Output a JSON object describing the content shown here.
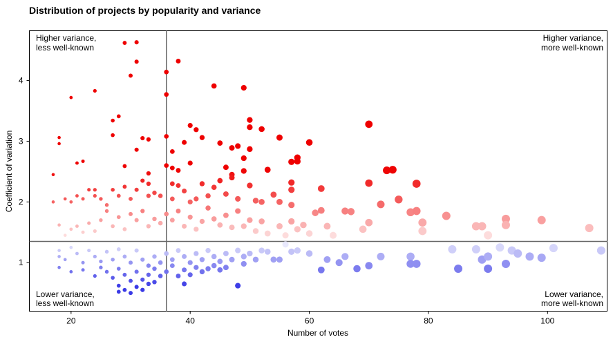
{
  "chart_data": {
    "type": "scatter",
    "title": "Distribution of projects by popularity and variance",
    "xlabel": "Number of votes",
    "ylabel": "Coefficient of variation",
    "xlim": [
      13,
      110
    ],
    "ylim": [
      0.2,
      4.82
    ],
    "xticks": [
      20,
      40,
      60,
      80,
      100
    ],
    "yticks": [
      1,
      2,
      3,
      4
    ],
    "reference_lines": {
      "x": 36,
      "y": 1.35
    },
    "grid": false,
    "corner_annotations": {
      "top_left": [
        "Higher variance,",
        "less well-known"
      ],
      "top_right": [
        "Higher variance,",
        "more well-known"
      ],
      "bottom_left": [
        "Lower variance,",
        "less well-known"
      ],
      "bottom_right": [
        "Lower variance,",
        "more well-known"
      ]
    },
    "color_scale": {
      "high": "#ee0000",
      "mid": "#ffffff",
      "low": "#3a3ae6",
      "center": 1.35
    },
    "points": [
      [
        17,
        2.45
      ],
      [
        18,
        3.06
      ],
      [
        18,
        2.96
      ],
      [
        20,
        3.72
      ],
      [
        21,
        2.64
      ],
      [
        22,
        2.67
      ],
      [
        24,
        3.83
      ],
      [
        27,
        3.1
      ],
      [
        27,
        3.34
      ],
      [
        28,
        3.41
      ],
      [
        29,
        4.62
      ],
      [
        29,
        2.59
      ],
      [
        30,
        4.08
      ],
      [
        31,
        4.31
      ],
      [
        31,
        4.63
      ],
      [
        31,
        2.86
      ],
      [
        32,
        3.05
      ],
      [
        33,
        3.03
      ],
      [
        33,
        2.47
      ],
      [
        36,
        4.14
      ],
      [
        36,
        3.77
      ],
      [
        36,
        3.08
      ],
      [
        36,
        2.6
      ],
      [
        37,
        2.83
      ],
      [
        37,
        2.56
      ],
      [
        38,
        4.32
      ],
      [
        38,
        2.52
      ],
      [
        39,
        2.98
      ],
      [
        40,
        3.26
      ],
      [
        40,
        2.64
      ],
      [
        41,
        3.19
      ],
      [
        42,
        3.06
      ],
      [
        44,
        3.91
      ],
      [
        45,
        2.97
      ],
      [
        46,
        2.57
      ],
      [
        47,
        2.89
      ],
      [
        47,
        2.45
      ],
      [
        48,
        2.92
      ],
      [
        49,
        3.88
      ],
      [
        49,
        2.72
      ],
      [
        49,
        2.51
      ],
      [
        50,
        3.35
      ],
      [
        50,
        3.23
      ],
      [
        50,
        2.87
      ],
      [
        52,
        3.2
      ],
      [
        53,
        2.53
      ],
      [
        55,
        3.06
      ],
      [
        57,
        2.66
      ],
      [
        58,
        2.73
      ],
      [
        58,
        2.67
      ],
      [
        60,
        2.98
      ],
      [
        70,
        3.28
      ],
      [
        73,
        2.52
      ],
      [
        74,
        2.53
      ],
      [
        17,
        2.0
      ],
      [
        19,
        2.05
      ],
      [
        20,
        2.0
      ],
      [
        21,
        2.1
      ],
      [
        22,
        2.05
      ],
      [
        23,
        2.2
      ],
      [
        24,
        2.2
      ],
      [
        24,
        2.1
      ],
      [
        25,
        2.05
      ],
      [
        26,
        1.95
      ],
      [
        27,
        2.2
      ],
      [
        28,
        2.1
      ],
      [
        29,
        2.25
      ],
      [
        30,
        2.05
      ],
      [
        31,
        2.2
      ],
      [
        32,
        2.35
      ],
      [
        33,
        2.1
      ],
      [
        33,
        2.3
      ],
      [
        34,
        2.15
      ],
      [
        35,
        2.1
      ],
      [
        37,
        2.3
      ],
      [
        37,
        2.05
      ],
      [
        38,
        2.27
      ],
      [
        39,
        2.18
      ],
      [
        40,
        2.0
      ],
      [
        41,
        2.05
      ],
      [
        42,
        2.3
      ],
      [
        43,
        2.1
      ],
      [
        44,
        2.24
      ],
      [
        45,
        2.35
      ],
      [
        46,
        2.13
      ],
      [
        47,
        2.4
      ],
      [
        48,
        2.05
      ],
      [
        50,
        2.27
      ],
      [
        51,
        2.02
      ],
      [
        52,
        2.0
      ],
      [
        54,
        2.12
      ],
      [
        55,
        2.0
      ],
      [
        57,
        2.32
      ],
      [
        57,
        2.2
      ],
      [
        62,
        2.22
      ],
      [
        70,
        2.31
      ],
      [
        75,
        2.04
      ],
      [
        78,
        2.3
      ],
      [
        72,
        1.96
      ],
      [
        57,
        1.95
      ],
      [
        61,
        1.82
      ],
      [
        62,
        1.86
      ],
      [
        18,
        1.62
      ],
      [
        19,
        1.45
      ],
      [
        20,
        1.55
      ],
      [
        21,
        1.6
      ],
      [
        22,
        1.5
      ],
      [
        23,
        1.65
      ],
      [
        24,
        1.52
      ],
      [
        25,
        1.7
      ],
      [
        26,
        1.85
      ],
      [
        27,
        1.6
      ],
      [
        28,
        1.75
      ],
      [
        29,
        1.55
      ],
      [
        30,
        1.8
      ],
      [
        31,
        1.7
      ],
      [
        32,
        1.85
      ],
      [
        33,
        1.6
      ],
      [
        34,
        1.72
      ],
      [
        35,
        1.65
      ],
      [
        36,
        1.8
      ],
      [
        37,
        1.7
      ],
      [
        38,
        1.85
      ],
      [
        39,
        1.6
      ],
      [
        40,
        1.75
      ],
      [
        41,
        1.55
      ],
      [
        42,
        1.68
      ],
      [
        43,
        1.9
      ],
      [
        44,
        1.72
      ],
      [
        45,
        1.62
      ],
      [
        46,
        1.78
      ],
      [
        47,
        1.58
      ],
      [
        48,
        1.85
      ],
      [
        49,
        1.6
      ],
      [
        50,
        1.7
      ],
      [
        51,
        1.52
      ],
      [
        52,
        1.68
      ],
      [
        53,
        1.48
      ],
      [
        55,
        1.6
      ],
      [
        56,
        1.45
      ],
      [
        57,
        1.68
      ],
      [
        58,
        1.55
      ],
      [
        59,
        1.62
      ],
      [
        60,
        1.48
      ],
      [
        63,
        1.6
      ],
      [
        64,
        1.45
      ],
      [
        66,
        1.85
      ],
      [
        67,
        1.84
      ],
      [
        69,
        1.55
      ],
      [
        70,
        1.66
      ],
      [
        77,
        1.83
      ],
      [
        78,
        1.85
      ],
      [
        79,
        1.66
      ],
      [
        79,
        1.52
      ],
      [
        83,
        1.77
      ],
      [
        88,
        1.6
      ],
      [
        89,
        1.6
      ],
      [
        90,
        1.45
      ],
      [
        93,
        1.72
      ],
      [
        93,
        1.62
      ],
      [
        99,
        1.7
      ],
      [
        107,
        1.57
      ],
      [
        18,
        1.2
      ],
      [
        18,
        1.1
      ],
      [
        18,
        0.92
      ],
      [
        19,
        1.05
      ],
      [
        20,
        1.25
      ],
      [
        20,
        0.85
      ],
      [
        21,
        1.15
      ],
      [
        22,
        1.0
      ],
      [
        22,
        0.88
      ],
      [
        23,
        1.2
      ],
      [
        24,
        1.1
      ],
      [
        24,
        0.78
      ],
      [
        25,
        1.02
      ],
      [
        25,
        0.92
      ],
      [
        26,
        1.18
      ],
      [
        26,
        0.85
      ],
      [
        27,
        1.05
      ],
      [
        27,
        0.75
      ],
      [
        28,
        1.22
      ],
      [
        28,
        0.9
      ],
      [
        28,
        0.62
      ],
      [
        28,
        0.52
      ],
      [
        29,
        1.1
      ],
      [
        29,
        0.8
      ],
      [
        29,
        0.55
      ],
      [
        30,
        1.0
      ],
      [
        30,
        0.7
      ],
      [
        30,
        0.5
      ],
      [
        31,
        1.2
      ],
      [
        31,
        0.85
      ],
      [
        31,
        0.6
      ],
      [
        32,
        1.05
      ],
      [
        32,
        0.72
      ],
      [
        32,
        0.55
      ],
      [
        33,
        0.95
      ],
      [
        33,
        0.8
      ],
      [
        33,
        0.65
      ],
      [
        34,
        1.1
      ],
      [
        34,
        0.9
      ],
      [
        34,
        0.68
      ],
      [
        35,
        1.0
      ],
      [
        35,
        0.78
      ],
      [
        36,
        1.15
      ],
      [
        36,
        0.85
      ],
      [
        37,
        1.05
      ],
      [
        37,
        0.95
      ],
      [
        38,
        1.2
      ],
      [
        38,
        0.78
      ],
      [
        39,
        1.1
      ],
      [
        39,
        0.88
      ],
      [
        39,
        0.65
      ],
      [
        40,
        1.0
      ],
      [
        40,
        0.8
      ],
      [
        41,
        1.15
      ],
      [
        41,
        0.92
      ],
      [
        42,
        1.05
      ],
      [
        42,
        0.85
      ],
      [
        43,
        1.2
      ],
      [
        43,
        0.9
      ],
      [
        44,
        1.1
      ],
      [
        44,
        0.95
      ],
      [
        45,
        1.02
      ],
      [
        45,
        0.88
      ],
      [
        46,
        1.15
      ],
      [
        46,
        0.92
      ],
      [
        47,
        1.05
      ],
      [
        48,
        0.62
      ],
      [
        48,
        1.2
      ],
      [
        49,
        1.1
      ],
      [
        49,
        0.98
      ],
      [
        50,
        1.15
      ],
      [
        51,
        1.05
      ],
      [
        52,
        1.2
      ],
      [
        53,
        1.18
      ],
      [
        54,
        1.05
      ],
      [
        55,
        1.05
      ],
      [
        56,
        1.3
      ],
      [
        57,
        1.18
      ],
      [
        58,
        1.2
      ],
      [
        60,
        1.15
      ],
      [
        62,
        0.88
      ],
      [
        63,
        1.05
      ],
      [
        65,
        1.0
      ],
      [
        66,
        1.1
      ],
      [
        68,
        0.9
      ],
      [
        70,
        0.95
      ],
      [
        72,
        1.1
      ],
      [
        77,
        1.1
      ],
      [
        77,
        0.98
      ],
      [
        78,
        0.98
      ],
      [
        84,
        1.22
      ],
      [
        85,
        0.9
      ],
      [
        88,
        1.22
      ],
      [
        89,
        1.05
      ],
      [
        90,
        1.1
      ],
      [
        90,
        0.9
      ],
      [
        92,
        1.25
      ],
      [
        93,
        0.98
      ],
      [
        94,
        1.2
      ],
      [
        95,
        1.15
      ],
      [
        97,
        1.1
      ],
      [
        99,
        1.08
      ],
      [
        101,
        1.24
      ],
      [
        109,
        1.2
      ]
    ]
  }
}
